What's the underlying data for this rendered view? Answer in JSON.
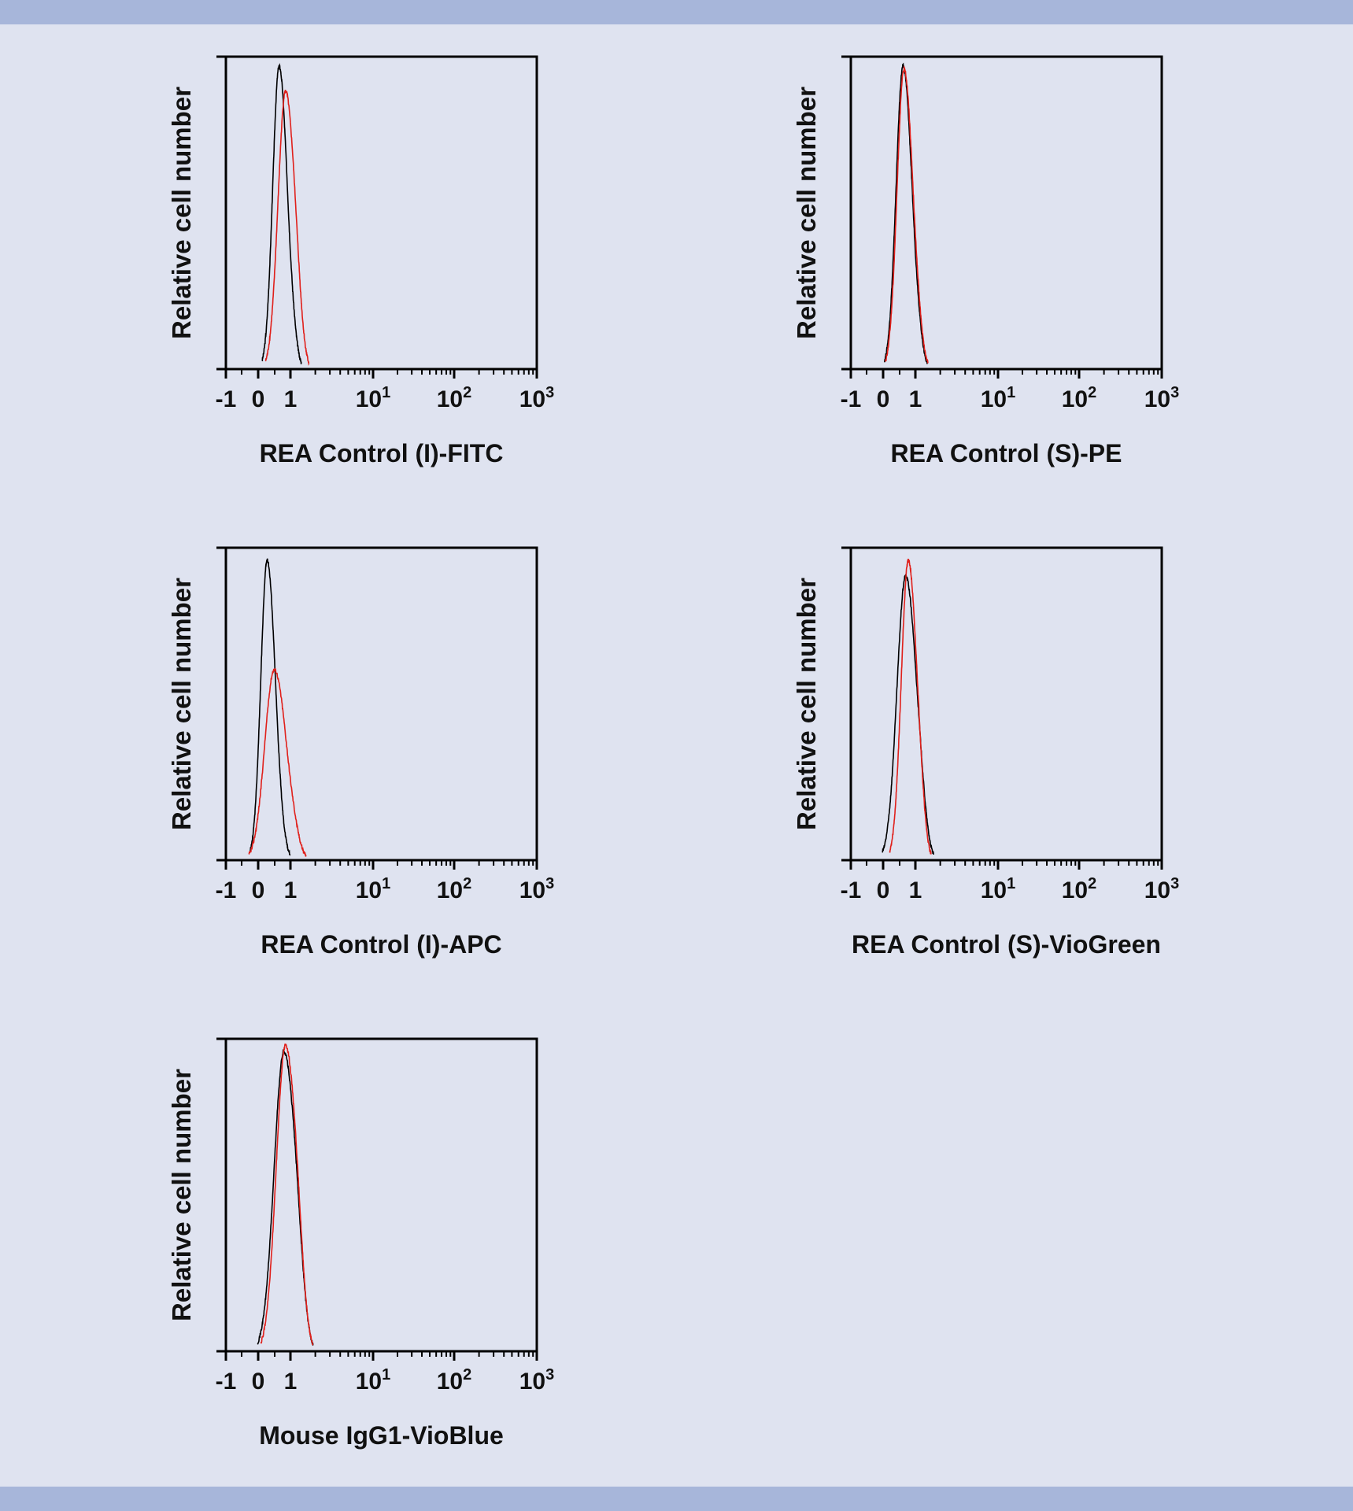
{
  "chart_data": [
    {
      "type": "line",
      "xlabel": "REA Control (I)-FITC",
      "ylabel": "Relative cell number",
      "x_tick_labels": [
        {
          "base": "-1",
          "exp": ""
        },
        {
          "base": "0",
          "exp": ""
        },
        {
          "base": "1",
          "exp": ""
        },
        {
          "base": "10",
          "exp": "1"
        },
        {
          "base": "10",
          "exp": "2"
        },
        {
          "base": "10",
          "exp": "3"
        }
      ],
      "x_scale": "biexponential",
      "xlim": [
        -1,
        1000
      ],
      "ylim": [
        0,
        1
      ],
      "series": [
        {
          "color": "#000000",
          "peak_x": 0.65,
          "peak_y": 0.97,
          "width": 0.22
        },
        {
          "color": "#e0201b",
          "peak_x": 0.85,
          "peak_y": 0.89,
          "width": 0.26
        }
      ]
    },
    {
      "type": "line",
      "xlabel": "REA Control (S)-PE",
      "ylabel": "Relative cell number",
      "x_tick_labels": [
        {
          "base": "-1",
          "exp": ""
        },
        {
          "base": "0",
          "exp": ""
        },
        {
          "base": "1",
          "exp": ""
        },
        {
          "base": "10",
          "exp": "1"
        },
        {
          "base": "10",
          "exp": "2"
        },
        {
          "base": "10",
          "exp": "3"
        }
      ],
      "x_scale": "biexponential",
      "xlim": [
        -1,
        1000
      ],
      "ylim": [
        0,
        1
      ],
      "series": [
        {
          "color": "#000000",
          "peak_x": 0.62,
          "peak_y": 0.97,
          "width": 0.24
        },
        {
          "color": "#e0201b",
          "peak_x": 0.65,
          "peak_y": 0.96,
          "width": 0.24
        }
      ]
    },
    {
      "type": "line",
      "xlabel": "REA Control (I)-APC",
      "ylabel": "Relative cell number",
      "x_tick_labels": [
        {
          "base": "-1",
          "exp": ""
        },
        {
          "base": "0",
          "exp": ""
        },
        {
          "base": "1",
          "exp": ""
        },
        {
          "base": "10",
          "exp": "1"
        },
        {
          "base": "10",
          "exp": "2"
        },
        {
          "base": "10",
          "exp": "3"
        }
      ],
      "x_scale": "biexponential",
      "xlim": [
        -1,
        1000
      ],
      "ylim": [
        0,
        1
      ],
      "series": [
        {
          "color": "#000000",
          "peak_x": 0.28,
          "peak_y": 0.96,
          "width": 0.22
        },
        {
          "color": "#e0201b",
          "peak_x": 0.5,
          "peak_y": 0.61,
          "width": 0.33
        }
      ]
    },
    {
      "type": "line",
      "xlabel": "REA Control (S)-VioGreen",
      "ylabel": "Relative cell number",
      "x_tick_labels": [
        {
          "base": "-1",
          "exp": ""
        },
        {
          "base": "0",
          "exp": ""
        },
        {
          "base": "1",
          "exp": ""
        },
        {
          "base": "10",
          "exp": "1"
        },
        {
          "base": "10",
          "exp": "2"
        },
        {
          "base": "10",
          "exp": "3"
        }
      ],
      "x_scale": "biexponential",
      "xlim": [
        -1,
        1000
      ],
      "ylim": [
        0,
        1
      ],
      "series": [
        {
          "color": "#000000",
          "peak_x": 0.7,
          "peak_y": 0.91,
          "width": 0.3
        },
        {
          "color": "#e0201b",
          "peak_x": 0.78,
          "peak_y": 0.96,
          "width": 0.24
        }
      ]
    },
    {
      "type": "line",
      "xlabel": "Mouse IgG1-VioBlue",
      "ylabel": "Relative cell number",
      "x_tick_labels": [
        {
          "base": "-1",
          "exp": ""
        },
        {
          "base": "0",
          "exp": ""
        },
        {
          "base": "1",
          "exp": ""
        },
        {
          "base": "10",
          "exp": "1"
        },
        {
          "base": "10",
          "exp": "2"
        },
        {
          "base": "10",
          "exp": "3"
        }
      ],
      "x_scale": "biexponential",
      "xlim": [
        -1,
        1000
      ],
      "ylim": [
        0,
        1
      ],
      "series": [
        {
          "color": "#000000",
          "peak_x": 0.8,
          "peak_y": 0.96,
          "width": 0.34
        },
        {
          "color": "#e0201b",
          "peak_x": 0.85,
          "peak_y": 0.98,
          "width": 0.32
        }
      ]
    }
  ]
}
